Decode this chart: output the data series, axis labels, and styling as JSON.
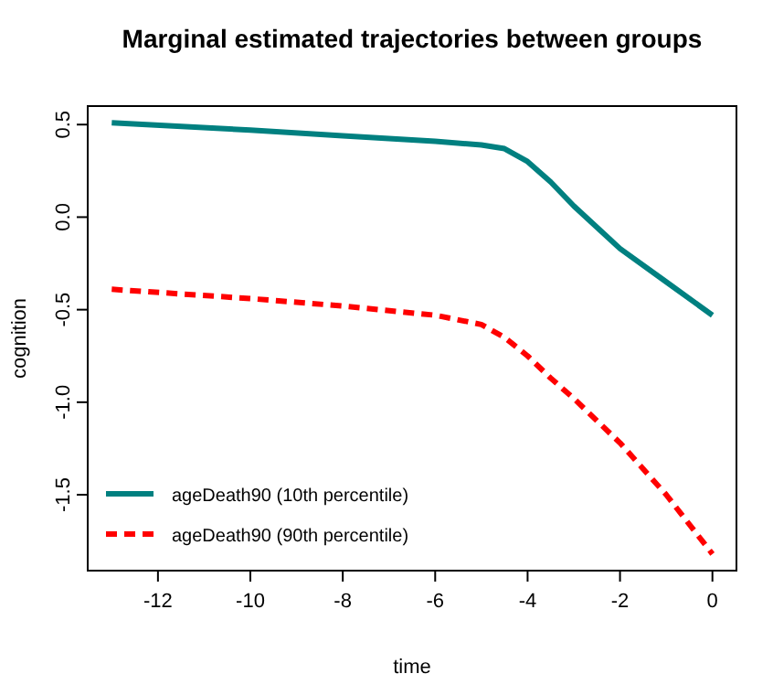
{
  "chart_data": {
    "type": "line",
    "title": "Marginal estimated trajectories between groups",
    "xlabel": "time",
    "ylabel": "cognition",
    "x": [
      -13,
      -10,
      -8,
      -6,
      -5,
      -4.5,
      -4,
      -3.5,
      -3,
      -2,
      -1,
      0
    ],
    "series": [
      {
        "name": "ageDeath90 (10th percentile)",
        "color": "#008080",
        "line_style": "solid",
        "values": [
          0.51,
          0.47,
          0.44,
          0.41,
          0.39,
          0.37,
          0.3,
          0.19,
          0.06,
          -0.17,
          -0.35,
          -0.53
        ]
      },
      {
        "name": "ageDeath90 (90th percentile)",
        "color": "#ff0000",
        "line_style": "dashed",
        "values": [
          -0.39,
          -0.44,
          -0.48,
          -0.53,
          -0.58,
          -0.65,
          -0.75,
          -0.87,
          -0.98,
          -1.22,
          -1.5,
          -1.82
        ]
      }
    ],
    "xlim": [
      -13.52,
      0.52
    ],
    "ylim": [
      -1.91,
      0.6
    ],
    "xticks": [
      -12,
      -10,
      -8,
      -6,
      -4,
      -2,
      0
    ],
    "yticks": [
      -1.5,
      {
        "value": -1,
        "label": "-1.0"
      },
      -0.5,
      {
        "value": 0,
        "label": "0.0"
      },
      0.5
    ],
    "legend": "bottom left",
    "grid": false,
    "marker": "none"
  }
}
